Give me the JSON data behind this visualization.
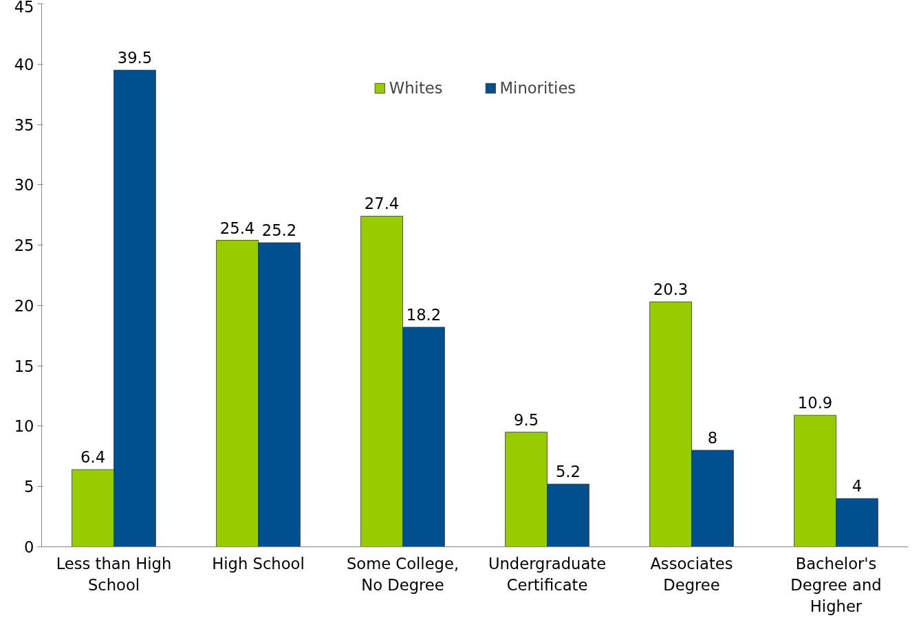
{
  "chart_data": {
    "type": "bar",
    "categories": [
      "Less than High School",
      "High School",
      "Some College, No Degree",
      "Undergraduate Certificate",
      "Associates Degree",
      "Bachelor's Degree and Higher"
    ],
    "series": [
      {
        "name": "Whites",
        "color": "#99cc00",
        "values": [
          6.4,
          25.4,
          27.4,
          9.5,
          20.3,
          10.9
        ]
      },
      {
        "name": "Minorities",
        "color": "#004f8f",
        "values": [
          39.5,
          25.2,
          18.2,
          5.2,
          8,
          4
        ]
      }
    ],
    "ylim": [
      0,
      45
    ],
    "yticks": [
      0,
      5,
      10,
      15,
      20,
      25,
      30,
      35,
      40,
      45
    ],
    "grid": false,
    "legend": "top",
    "data_labels": true
  }
}
